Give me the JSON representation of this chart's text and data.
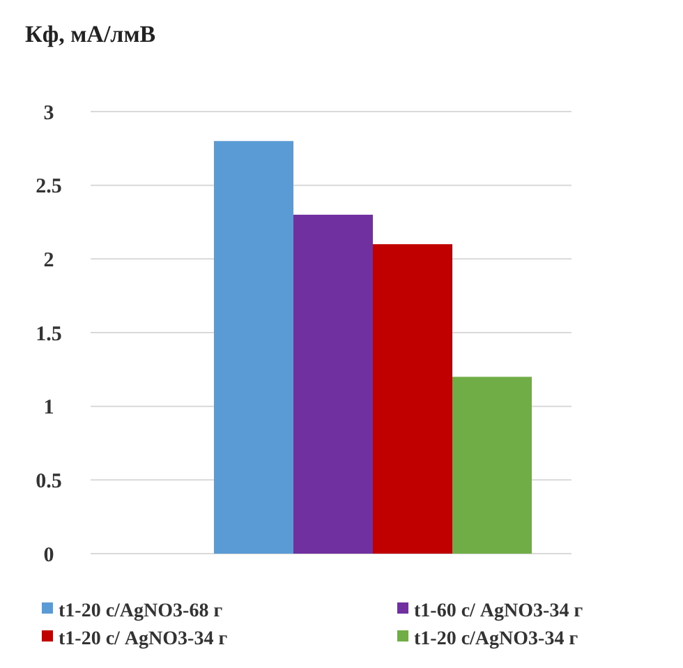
{
  "chart_data": {
    "type": "bar",
    "ylabel": "Кф, мА/лмВ",
    "categories": [
      null
    ],
    "series": [
      {
        "name": "t1-20 с/AgNO3-68 г",
        "color": "#5b9bd5",
        "values": [
          2.8
        ]
      },
      {
        "name": "t1-60 с/ AgNO3-34 г",
        "color": "#7030a0",
        "values": [
          2.3
        ]
      },
      {
        "name": "t1-20 с/ AgNO3-34 г",
        "color": "#c00000",
        "values": [
          2.1
        ]
      },
      {
        "name": "t1-20 с/AgNO3-34 г",
        "color": "#70ad47",
        "values": [
          1.2
        ]
      }
    ],
    "ylim": [
      0,
      3
    ],
    "yticks": [
      0,
      0.5,
      1,
      1.5,
      2,
      2.5,
      3
    ],
    "grid": "y",
    "legend": "bottom"
  }
}
